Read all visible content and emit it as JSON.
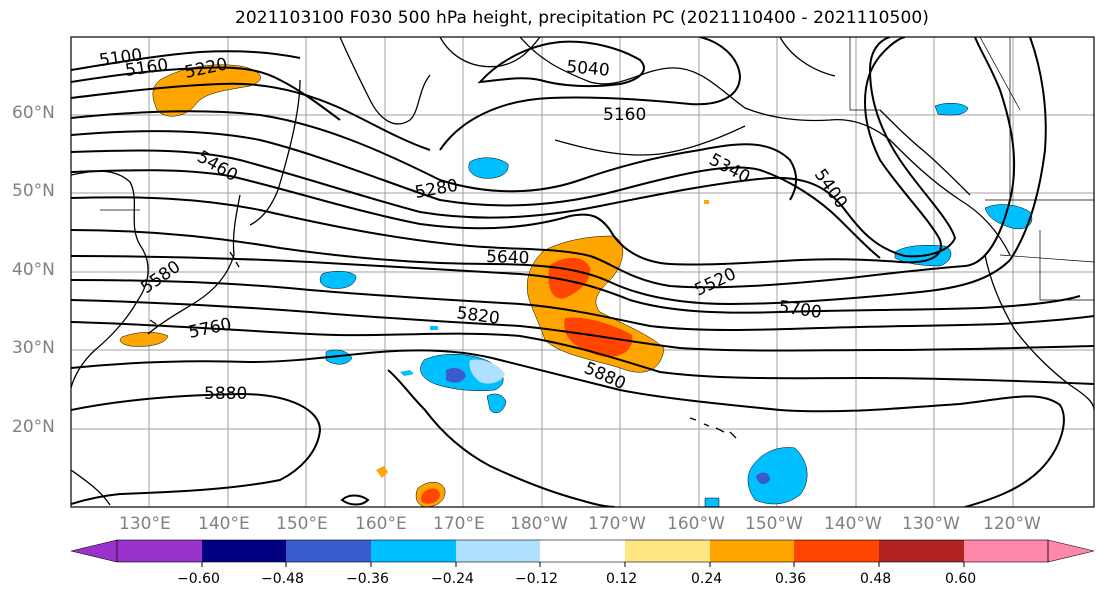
{
  "title": "2021103100 F030 500 hPa height, precipitation PC (2021110400 - 2021110500)",
  "map": {
    "lat_labels": [
      "60°N",
      "50°N",
      "40°N",
      "30°N",
      "20°N"
    ],
    "lon_labels": [
      "130°E",
      "140°E",
      "150°E",
      "160°E",
      "170°E",
      "180°W",
      "170°W",
      "160°W",
      "150°W",
      "140°W",
      "130°W",
      "120°W"
    ],
    "contour_labels": [
      "5100",
      "5160",
      "5220",
      "5040",
      "5160",
      "5460",
      "5340",
      "5280",
      "5400",
      "5640",
      "5580",
      "5520",
      "5700",
      "5760",
      "5820",
      "5880",
      "5880"
    ]
  },
  "colorbar": {
    "labels": [
      "−0.60",
      "−0.48",
      "−0.36",
      "−0.24",
      "−0.12",
      "0.12",
      "0.24",
      "0.36",
      "0.48",
      "0.60"
    ],
    "colors": [
      "#9933cc",
      "#000080",
      "#3a5bcc",
      "#00bfff",
      "#b0e0ff",
      "#ffffff",
      "#ffe680",
      "#ffa500",
      "#ff4500",
      "#b22222",
      "#ff88aa"
    ]
  }
}
